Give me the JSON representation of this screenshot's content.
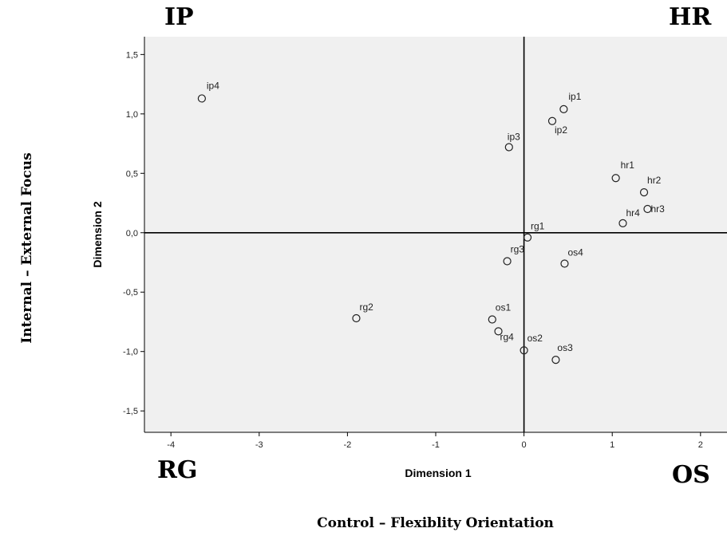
{
  "quadrants": {
    "top_left": "IP",
    "top_right": "HR",
    "bottom_left": "RG",
    "bottom_right": "OS"
  },
  "outer_labels": {
    "y": "Internal – External Focus",
    "x": "Control – Flexiblity Orientation"
  },
  "chart_data": {
    "type": "scatter",
    "title": "",
    "xlabel": "Dimension 1",
    "ylabel": "Dimension 2",
    "xlim": [
      -4.3,
      2.3
    ],
    "ylim": [
      -1.68,
      1.65
    ],
    "xticks": [
      "-4",
      "-3",
      "-2",
      "-1",
      "0",
      "1",
      "2"
    ],
    "xtick_values": [
      -4,
      -3,
      -2,
      -1,
      0,
      1,
      2
    ],
    "yticks": [
      "1,5",
      "1,0",
      "0,5",
      "0,0",
      "-0,5",
      "-1,0",
      "-1,5"
    ],
    "ytick_values": [
      1.5,
      1.0,
      0.5,
      0.0,
      -0.5,
      -1.0,
      -1.5
    ],
    "reference_lines": {
      "x": 0,
      "y": 0
    },
    "grid": false,
    "background": "#f0f0f0",
    "marker": "hollow-circle",
    "points": [
      {
        "label": "ip4",
        "x": -3.65,
        "y": 1.13
      },
      {
        "label": "ip1",
        "x": 0.45,
        "y": 1.04
      },
      {
        "label": "ip2",
        "x": 0.32,
        "y": 0.94
      },
      {
        "label": "ip3",
        "x": -0.17,
        "y": 0.72
      },
      {
        "label": "hr1",
        "x": 1.04,
        "y": 0.46
      },
      {
        "label": "hr2",
        "x": 1.36,
        "y": 0.34
      },
      {
        "label": "hr3",
        "x": 1.4,
        "y": 0.2
      },
      {
        "label": "hr4",
        "x": 1.12,
        "y": 0.08
      },
      {
        "label": "rg1",
        "x": 0.04,
        "y": -0.04
      },
      {
        "label": "rg3",
        "x": -0.19,
        "y": -0.24
      },
      {
        "label": "os4",
        "x": 0.46,
        "y": -0.26
      },
      {
        "label": "rg2",
        "x": -1.9,
        "y": -0.72
      },
      {
        "label": "os1",
        "x": -0.36,
        "y": -0.73
      },
      {
        "label": "rg4",
        "x": -0.29,
        "y": -0.83
      },
      {
        "label": "os2",
        "x": 0.0,
        "y": -0.99
      },
      {
        "label": "os3",
        "x": 0.36,
        "y": -1.07
      }
    ]
  }
}
